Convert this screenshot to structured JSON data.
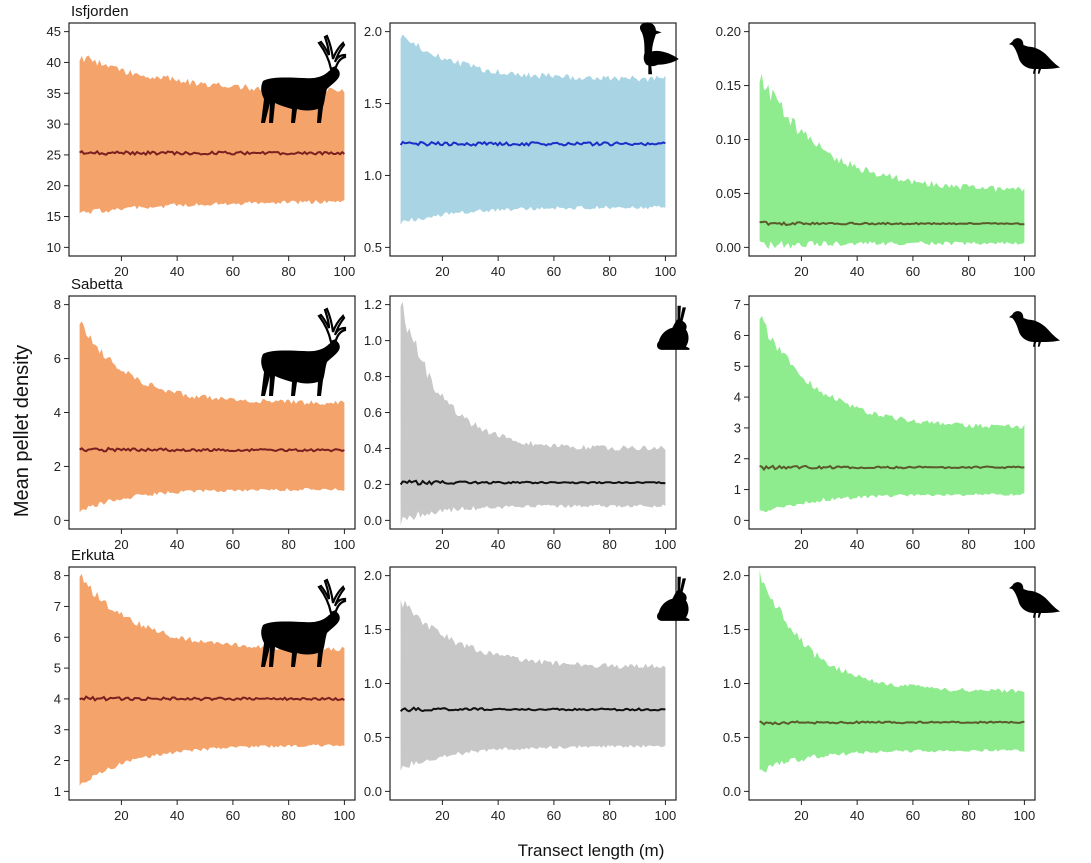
{
  "figure": {
    "ylabel": "Mean pellet density",
    "xlabel": "Transect length (m)"
  },
  "chart_data": [
    {
      "type": "area",
      "site": "Isfjorden",
      "animal": "reindeer-icon",
      "color": "#f4a36b",
      "line_color": "#7a2020",
      "x": [
        5,
        100
      ],
      "xticks": [
        20,
        40,
        60,
        80,
        100
      ],
      "ylim": [
        10,
        45
      ],
      "yticks": [
        10,
        15,
        20,
        25,
        30,
        35,
        40,
        45
      ],
      "mean": [
        25.3,
        25.3
      ],
      "upper_start": 41,
      "upper_end": 35,
      "lower_start": 15.5,
      "lower_end": 17.5,
      "decay": 0.03,
      "noise_rel": 0.06
    },
    {
      "type": "area",
      "site": "",
      "animal": "goose-icon",
      "color": "#a9d4e4",
      "line_color": "#1a2ec8",
      "x": [
        5,
        100
      ],
      "xticks": [
        20,
        40,
        60,
        80,
        100
      ],
      "ylim": [
        0.5,
        2.0
      ],
      "yticks": [
        0.5,
        1.0,
        1.5,
        2.0
      ],
      "mean": [
        1.22,
        1.22
      ],
      "upper_start": 1.98,
      "upper_end": 1.67,
      "lower_start": 0.67,
      "lower_end": 0.78,
      "decay": 0.05,
      "noise_rel": 0.05
    },
    {
      "type": "area",
      "site": "",
      "animal": "ptarmigan-icon",
      "color": "#8eec8e",
      "line_color": "#5a5a2a",
      "x": [
        5,
        100
      ],
      "xticks": [
        20,
        40,
        60,
        80,
        100
      ],
      "ylim": [
        0.0,
        0.2
      ],
      "yticks": [
        0.0,
        0.05,
        0.1,
        0.15,
        0.2
      ],
      "mean": [
        0.022,
        0.022
      ],
      "upper_start": 0.16,
      "upper_end": 0.052,
      "lower_start": 0.002,
      "lower_end": 0.004,
      "decay": 0.045,
      "noise_rel": 0.12
    },
    {
      "type": "area",
      "site": "Sabetta",
      "animal": "reindeer-icon",
      "color": "#f4a36b",
      "line_color": "#7a2020",
      "x": [
        5,
        100
      ],
      "xticks": [
        20,
        40,
        60,
        80,
        100
      ],
      "ylim": [
        0,
        8
      ],
      "yticks": [
        0,
        2,
        4,
        6,
        8
      ],
      "mean": [
        2.62,
        2.6
      ],
      "upper_start": 7.4,
      "upper_end": 4.35,
      "lower_start": 0.3,
      "lower_end": 1.15,
      "decay": 0.06,
      "noise_rel": 0.06
    },
    {
      "type": "area",
      "site": "",
      "animal": "hare-icon",
      "color": "#c8c8c8",
      "line_color": "#111111",
      "x": [
        5,
        100
      ],
      "xticks": [
        20,
        40,
        60,
        80,
        100
      ],
      "ylim": [
        0.0,
        1.2
      ],
      "yticks": [
        0.0,
        0.2,
        0.4,
        0.6,
        0.8,
        1.0,
        1.2
      ],
      "mean": [
        0.21,
        0.21
      ],
      "upper_start": 1.22,
      "upper_end": 0.4,
      "lower_start": 0.0,
      "lower_end": 0.08,
      "decay": 0.07,
      "noise_rel": 0.1
    },
    {
      "type": "area",
      "site": "",
      "animal": "ptarmigan-icon",
      "color": "#8eec8e",
      "line_color": "#5a5a2a",
      "x": [
        5,
        100
      ],
      "xticks": [
        20,
        40,
        60,
        80,
        100
      ],
      "ylim": [
        0,
        7
      ],
      "yticks": [
        0,
        1,
        2,
        3,
        4,
        5,
        6,
        7
      ],
      "mean": [
        1.72,
        1.72
      ],
      "upper_start": 6.6,
      "upper_end": 3.0,
      "lower_start": 0.25,
      "lower_end": 0.85,
      "decay": 0.05,
      "noise_rel": 0.07
    },
    {
      "type": "area",
      "site": "Erkuta",
      "animal": "reindeer-icon",
      "color": "#f4a36b",
      "line_color": "#7a2020",
      "x": [
        5,
        100
      ],
      "xticks": [
        20,
        40,
        60,
        80,
        100
      ],
      "ylim": [
        1,
        8
      ],
      "yticks": [
        1,
        2,
        3,
        4,
        5,
        6,
        7,
        8
      ],
      "mean": [
        4.0,
        4.0
      ],
      "upper_start": 8.0,
      "upper_end": 5.6,
      "lower_start": 1.2,
      "lower_end": 2.5,
      "decay": 0.05,
      "noise_rel": 0.05
    },
    {
      "type": "area",
      "site": "",
      "animal": "hare-icon",
      "color": "#c8c8c8",
      "line_color": "#111111",
      "x": [
        5,
        100
      ],
      "xticks": [
        20,
        40,
        60,
        80,
        100
      ],
      "ylim": [
        0.0,
        2.0
      ],
      "yticks": [
        0.0,
        0.5,
        1.0,
        1.5,
        2.0
      ],
      "mean": [
        0.76,
        0.76
      ],
      "upper_start": 1.78,
      "upper_end": 1.15,
      "lower_start": 0.22,
      "lower_end": 0.42,
      "decay": 0.05,
      "noise_rel": 0.07
    },
    {
      "type": "area",
      "site": "",
      "animal": "ptarmigan-icon",
      "color": "#8eec8e",
      "line_color": "#5a5a2a",
      "x": [
        5,
        100
      ],
      "xticks": [
        20,
        40,
        60,
        80,
        100
      ],
      "ylim": [
        0.0,
        2.0
      ],
      "yticks": [
        0.0,
        0.5,
        1.0,
        1.5,
        2.0
      ],
      "mean": [
        0.64,
        0.64
      ],
      "upper_start": 2.05,
      "upper_end": 0.93,
      "lower_start": 0.18,
      "lower_end": 0.38,
      "decay": 0.06,
      "noise_rel": 0.08
    }
  ]
}
